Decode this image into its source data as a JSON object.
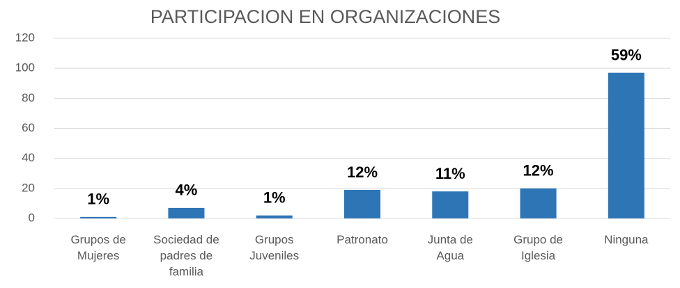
{
  "chart_data": {
    "type": "bar",
    "title": "PARTICIPACION EN ORGANIZACIONES",
    "categories": [
      "Grupos de\nMujeres",
      "Sociedad de\npadres de\nfamilia",
      "Grupos\nJuveniles",
      "Patronato",
      "Junta de\nAgua",
      "Grupo de\nIglesia",
      "Ninguna"
    ],
    "values": [
      1,
      7,
      2,
      19,
      18,
      20,
      97
    ],
    "value_labels": [
      "1%",
      "4%",
      "1%",
      "12%",
      "11%",
      "12%",
      "59%"
    ],
    "color": "#2e75b6",
    "ylim": [
      0,
      120
    ],
    "yticks": [
      0,
      20,
      40,
      60,
      80,
      100,
      120
    ],
    "grid": true
  }
}
